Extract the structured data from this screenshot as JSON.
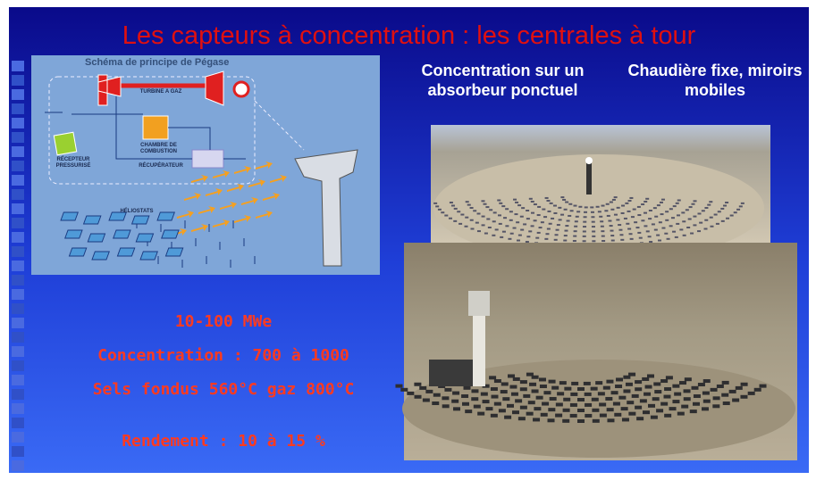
{
  "slide": {
    "title": "Les capteurs à concentration : les centrales à tour",
    "diagram": {
      "title": "Schéma de principe de Pégase",
      "labels": {
        "turbine": "TURBINE A GAZ",
        "chamber": "CHAMBRE DE COMBUSTION",
        "receiver": "RÉCEPTEUR PRESSURISÉ",
        "recuperator": "RÉCUPÉRATEUR",
        "heliostats": "HÉLIOSTATS"
      }
    },
    "headings": [
      "Concentration sur un absorbeur ponctuel",
      "Chaudière fixe, miroirs mobiles"
    ],
    "specs": [
      "10-100 MWe",
      "Concentration : 700 à 1000",
      "Sels fondus 560°C gaz 800°C",
      "Rendement : 10 à 15 %"
    ]
  }
}
